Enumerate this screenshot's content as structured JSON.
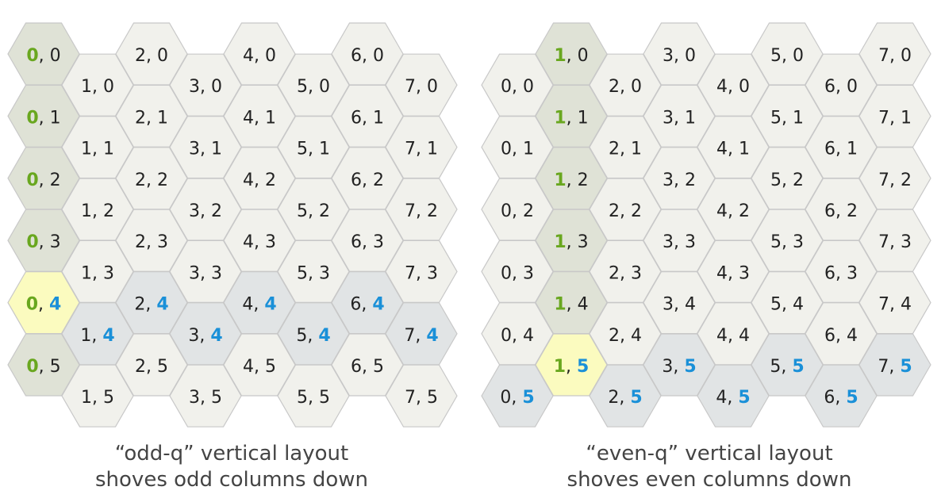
{
  "colors": {
    "cell_default": "#f1f1ec",
    "cell_highlight_column": "#dfe2d6",
    "cell_highlight_row": "#e1e4e5",
    "cell_selected": "#fbfbbf",
    "stroke": "#c8c8c8",
    "text": "#222222",
    "column_accent": "#69a71f",
    "row_accent": "#1a90d8"
  },
  "layouts": [
    {
      "name": "odd-q",
      "shoved_parity": "odd",
      "highlight_column": 0,
      "highlight_row": 4,
      "columns": 8,
      "rows": 6,
      "caption_line1": "“odd-q” vertical layout",
      "caption_line2": "shoves odd columns down"
    },
    {
      "name": "even-q",
      "shoved_parity": "even",
      "highlight_column": 1,
      "highlight_row": 5,
      "columns": 8,
      "rows": 6,
      "caption_line1": "“even-q” vertical layout",
      "caption_line2": "shoves even columns down"
    }
  ]
}
